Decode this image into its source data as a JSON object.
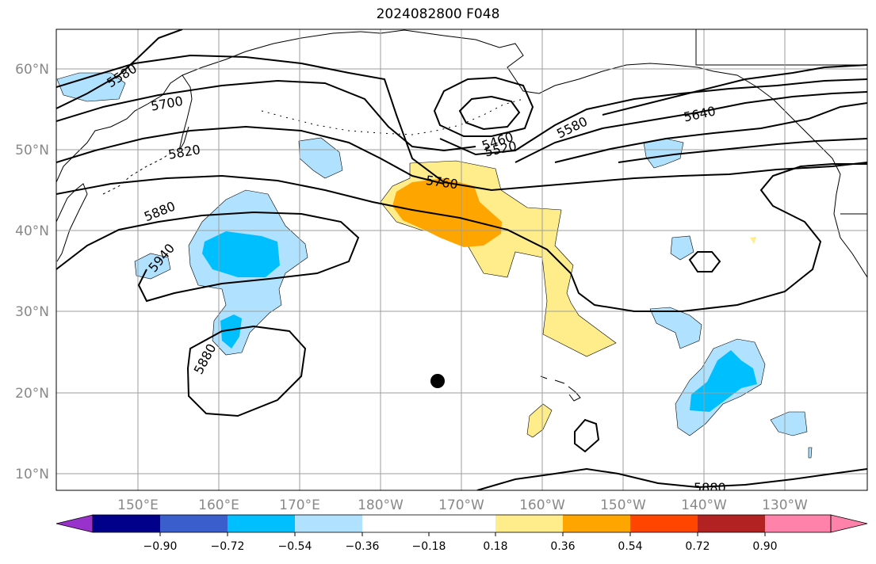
{
  "title": "2024082800 F048",
  "map": {
    "extent": {
      "lon_min": 140,
      "lon_max": 242,
      "lat_min": 8,
      "lat_max": 65
    },
    "lat_ticks": [
      {
        "lat": 60,
        "label": "60°N"
      },
      {
        "lat": 50,
        "label": "50°N"
      },
      {
        "lat": 40,
        "label": "40°N"
      },
      {
        "lat": 30,
        "label": "30°N"
      },
      {
        "lat": 20,
        "label": "20°N"
      },
      {
        "lat": 10,
        "label": "10°N"
      }
    ],
    "lon_ticks": [
      {
        "lon": 150,
        "label": "150°E"
      },
      {
        "lon": 160,
        "label": "160°E"
      },
      {
        "lon": 170,
        "label": "170°E"
      },
      {
        "lon": 180,
        "label": "180°W"
      },
      {
        "lon": 190,
        "label": "170°W"
      },
      {
        "lon": 200,
        "label": "160°W"
      },
      {
        "lon": 210,
        "label": "150°W"
      },
      {
        "lon": 220,
        "label": "140°W"
      },
      {
        "lon": 230,
        "label": "130°W"
      }
    ],
    "contour_labels": [
      "5580",
      "5700",
      "5820",
      "5880",
      "5940",
      "5880",
      "5760",
      "5460",
      "5520",
      "5580",
      "5640",
      "5880"
    ],
    "marker": {
      "lon": 187,
      "lat": 21.5,
      "color": "#000000"
    }
  },
  "colorbar": {
    "colors": [
      "#9932CC",
      "#00008B",
      "#3A5FCD",
      "#00BFFF",
      "#B0E2FF",
      "#FFFFFF",
      "#FFEC8B",
      "#FFA500",
      "#FF4500",
      "#B22222",
      "#FF82AB"
    ],
    "tick_labels": [
      "−0.90",
      "−0.72",
      "−0.54",
      "−0.36",
      "−0.18",
      "0.18",
      "0.36",
      "0.54",
      "0.72",
      "0.90"
    ]
  },
  "shading_colors": {
    "neg_light": "#B0E2FF",
    "neg_mid": "#00BFFF",
    "pos_light": "#FFEC8B",
    "pos_mid": "#FFA500"
  }
}
